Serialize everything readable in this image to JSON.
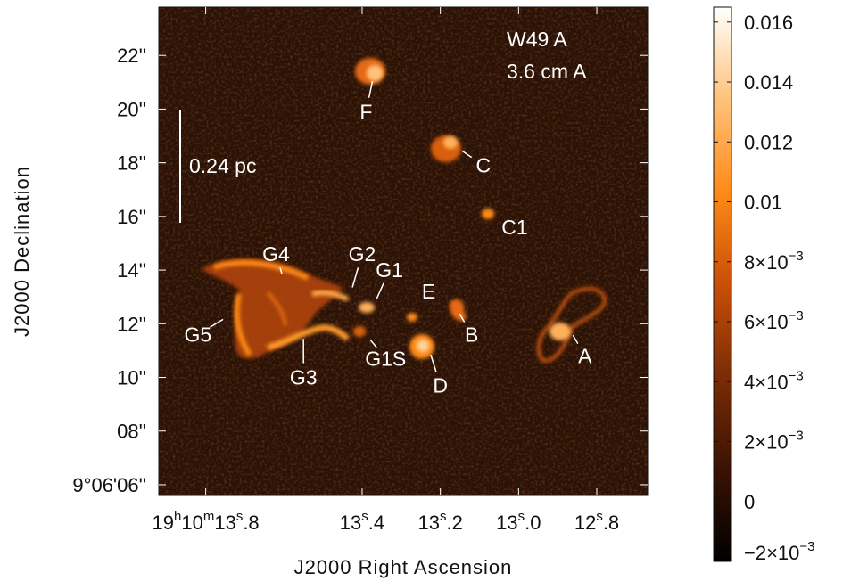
{
  "chart_data": {
    "type": "heatmap",
    "title_lines": [
      "W49 A",
      "3.6 cm A"
    ],
    "xlabel": "J2000 Right Ascension",
    "ylabel": "J2000 Declination",
    "x_ticks": [
      {
        "sec": 13.8,
        "pre": "19",
        "h": "h",
        "mid": "10",
        "m": "m",
        "s1": "13",
        "s": "s",
        "s2": ".8"
      },
      {
        "sec": 13.4,
        "pre": "",
        "h": "",
        "mid": "",
        "m": "",
        "s1": "13",
        "s": "s",
        "s2": ".4"
      },
      {
        "sec": 13.2,
        "pre": "",
        "h": "",
        "mid": "",
        "m": "",
        "s1": "13",
        "s": "s",
        "s2": ".2"
      },
      {
        "sec": 13.0,
        "pre": "",
        "h": "",
        "mid": "",
        "m": "",
        "s1": "13",
        "s": "s",
        "s2": ".0"
      },
      {
        "sec": 12.8,
        "pre": "",
        "h": "",
        "mid": "",
        "m": "",
        "s1": "12",
        "s": "s",
        "s2": ".8"
      }
    ],
    "y_ticks": [
      {
        "arcsec": 6,
        "label": "9°06'06''"
      },
      {
        "arcsec": 8,
        "label": "08''"
      },
      {
        "arcsec": 10,
        "label": "10''"
      },
      {
        "arcsec": 12,
        "label": "12''"
      },
      {
        "arcsec": 14,
        "label": "14''"
      },
      {
        "arcsec": 16,
        "label": "16''"
      },
      {
        "arcsec": 18,
        "label": "18''"
      },
      {
        "arcsec": 20,
        "label": "20''"
      },
      {
        "arcsec": 22,
        "label": "22''"
      }
    ],
    "xlim_sec": [
      13.92,
      12.67
    ],
    "ylim_arcsec": [
      5.6,
      23.8
    ],
    "scale_bar": {
      "label": "0.24 pc"
    },
    "sources": [
      {
        "name": "F",
        "ra": 13.37,
        "dec": 21.3,
        "label_ra": 13.39,
        "label_dec": 19.9
      },
      {
        "name": "C",
        "ra": 13.16,
        "dec": 18.6,
        "label_ra": 13.09,
        "label_dec": 17.9
      },
      {
        "name": "C1",
        "ra": 13.06,
        "dec": 16.2,
        "label_ra": 13.01,
        "label_dec": 15.6
      },
      {
        "name": "G4",
        "ra": 13.6,
        "dec": 13.6,
        "label_ra": 13.62,
        "label_dec": 14.6
      },
      {
        "name": "G2",
        "ra": 13.43,
        "dec": 13.1,
        "label_ra": 13.4,
        "label_dec": 14.6
      },
      {
        "name": "G1",
        "ra": 13.37,
        "dec": 12.7,
        "label_ra": 13.33,
        "label_dec": 14.0
      },
      {
        "name": "E",
        "ra": 13.24,
        "dec": 12.3,
        "label_ra": 13.23,
        "label_dec": 13.2
      },
      {
        "name": "G5",
        "ra": 13.74,
        "dec": 12.3,
        "label_ra": 13.82,
        "label_dec": 11.6
      },
      {
        "name": "B",
        "ra": 13.16,
        "dec": 12.6,
        "label_ra": 13.12,
        "label_dec": 11.6
      },
      {
        "name": "A",
        "ra": 12.87,
        "dec": 11.8,
        "label_ra": 12.83,
        "label_dec": 10.8
      },
      {
        "name": "G1S",
        "ra": 13.39,
        "dec": 11.6,
        "label_ra": 13.34,
        "label_dec": 10.7
      },
      {
        "name": "D",
        "ra": 13.23,
        "dec": 11.1,
        "label_ra": 13.2,
        "label_dec": 9.7
      },
      {
        "name": "G3",
        "ra": 13.55,
        "dec": 11.7,
        "label_ra": 13.55,
        "label_dec": 10.0
      }
    ],
    "colorbar": {
      "vmin": -0.002,
      "vmax": 0.0165,
      "colors": [
        "#000000",
        "#3a1204",
        "#7a2c05",
        "#c94f06",
        "#ff8a18",
        "#ffc27a",
        "#ffffff"
      ],
      "ticks": [
        {
          "value": 0.016,
          "label": "0.016"
        },
        {
          "value": 0.014,
          "label": "0.014"
        },
        {
          "value": 0.012,
          "label": "0.012"
        },
        {
          "value": 0.01,
          "label": "0.01"
        },
        {
          "value": 0.008,
          "label": "8×10",
          "exp": "−3"
        },
        {
          "value": 0.006,
          "label": "6×10",
          "exp": "−3"
        },
        {
          "value": 0.004,
          "label": "4×10",
          "exp": "−3"
        },
        {
          "value": 0.002,
          "label": "2×10",
          "exp": "−3"
        },
        {
          "value": 0.0,
          "label": "0"
        },
        {
          "value": -0.002,
          "label": "−2×10",
          "exp": "−3"
        }
      ]
    },
    "background_color": "#2b1206"
  }
}
